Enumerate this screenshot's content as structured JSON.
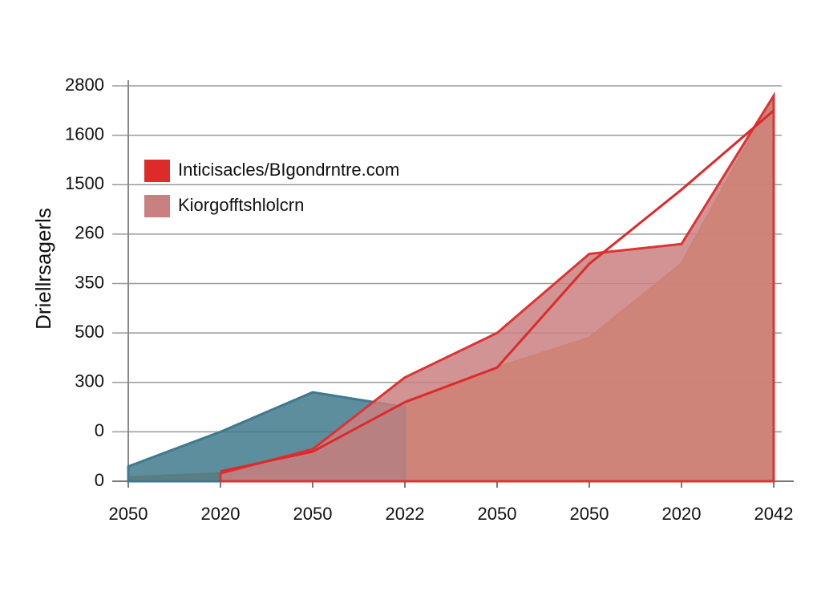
{
  "chart_data": {
    "type": "area",
    "y_label": "Driellrsagerls",
    "categories": [
      "2050",
      "2020",
      "2050",
      "2022",
      "2050",
      "2050",
      "2020",
      "2042"
    ],
    "ylim": [
      0,
      8
    ],
    "yticks": [
      {
        "value": 0,
        "label": "0"
      },
      {
        "value": 1,
        "label": "0"
      },
      {
        "value": 2,
        "label": "300"
      },
      {
        "value": 3,
        "label": "500"
      },
      {
        "value": 4,
        "label": "350"
      },
      {
        "value": 5,
        "label": "260"
      },
      {
        "value": 6,
        "label": "1500"
      },
      {
        "value": 7,
        "label": "1600"
      },
      {
        "value": 8,
        "label": "2800"
      }
    ],
    "grid": true,
    "legend": "upper left",
    "series": [
      {
        "color": "#ef8c3c",
        "kind": "area",
        "values": [
          0.08,
          0.16,
          0.5,
          1.6,
          2.3,
          2.9,
          4.4,
          7.8
        ]
      },
      {
        "color": "#3f7a8c",
        "kind": "area",
        "values": [
          0.3,
          1.0,
          1.8,
          1.5,
          null,
          null,
          null,
          null
        ]
      },
      {
        "name": "Kiorgofftshlolcrn",
        "color": "#c98080",
        "kind": "area",
        "values": [
          null,
          0.16,
          0.65,
          2.1,
          3.0,
          4.6,
          4.8,
          7.8
        ]
      },
      {
        "name": "Inticisacles/BIgondrntre.com",
        "color": "#dd2a2a",
        "kind": "line",
        "values": [
          null,
          0.2,
          0.6,
          1.6,
          2.3,
          4.4,
          5.9,
          7.5
        ]
      }
    ]
  }
}
